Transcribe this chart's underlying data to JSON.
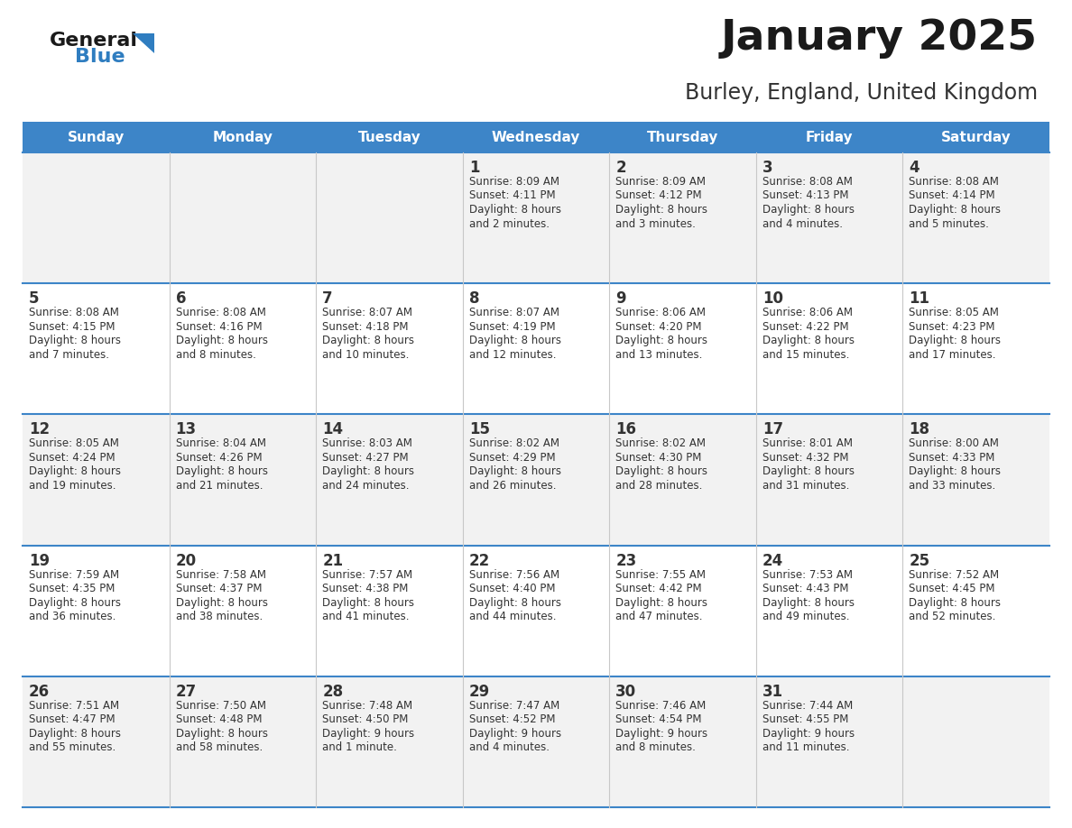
{
  "title": "January 2025",
  "subtitle": "Burley, England, United Kingdom",
  "header_bg": "#3d85c8",
  "header_text_color": "#ffffff",
  "day_names": [
    "Sunday",
    "Monday",
    "Tuesday",
    "Wednesday",
    "Thursday",
    "Friday",
    "Saturday"
  ],
  "row_bg_light": "#f2f2f2",
  "row_bg_white": "#ffffff",
  "cell_border_color": "#3d85c8",
  "text_color": "#333333",
  "logo_general_color": "#1a1a1a",
  "logo_blue_color": "#2f7dc0",
  "days": [
    {
      "day": 1,
      "col": 3,
      "row": 0,
      "sunrise": "8:09 AM",
      "sunset": "4:11 PM",
      "dl1": "Daylight: 8 hours",
      "dl2": "and 2 minutes."
    },
    {
      "day": 2,
      "col": 4,
      "row": 0,
      "sunrise": "8:09 AM",
      "sunset": "4:12 PM",
      "dl1": "Daylight: 8 hours",
      "dl2": "and 3 minutes."
    },
    {
      "day": 3,
      "col": 5,
      "row": 0,
      "sunrise": "8:08 AM",
      "sunset": "4:13 PM",
      "dl1": "Daylight: 8 hours",
      "dl2": "and 4 minutes."
    },
    {
      "day": 4,
      "col": 6,
      "row": 0,
      "sunrise": "8:08 AM",
      "sunset": "4:14 PM",
      "dl1": "Daylight: 8 hours",
      "dl2": "and 5 minutes."
    },
    {
      "day": 5,
      "col": 0,
      "row": 1,
      "sunrise": "8:08 AM",
      "sunset": "4:15 PM",
      "dl1": "Daylight: 8 hours",
      "dl2": "and 7 minutes."
    },
    {
      "day": 6,
      "col": 1,
      "row": 1,
      "sunrise": "8:08 AM",
      "sunset": "4:16 PM",
      "dl1": "Daylight: 8 hours",
      "dl2": "and 8 minutes."
    },
    {
      "day": 7,
      "col": 2,
      "row": 1,
      "sunrise": "8:07 AM",
      "sunset": "4:18 PM",
      "dl1": "Daylight: 8 hours",
      "dl2": "and 10 minutes."
    },
    {
      "day": 8,
      "col": 3,
      "row": 1,
      "sunrise": "8:07 AM",
      "sunset": "4:19 PM",
      "dl1": "Daylight: 8 hours",
      "dl2": "and 12 minutes."
    },
    {
      "day": 9,
      "col": 4,
      "row": 1,
      "sunrise": "8:06 AM",
      "sunset": "4:20 PM",
      "dl1": "Daylight: 8 hours",
      "dl2": "and 13 minutes."
    },
    {
      "day": 10,
      "col": 5,
      "row": 1,
      "sunrise": "8:06 AM",
      "sunset": "4:22 PM",
      "dl1": "Daylight: 8 hours",
      "dl2": "and 15 minutes."
    },
    {
      "day": 11,
      "col": 6,
      "row": 1,
      "sunrise": "8:05 AM",
      "sunset": "4:23 PM",
      "dl1": "Daylight: 8 hours",
      "dl2": "and 17 minutes."
    },
    {
      "day": 12,
      "col": 0,
      "row": 2,
      "sunrise": "8:05 AM",
      "sunset": "4:24 PM",
      "dl1": "Daylight: 8 hours",
      "dl2": "and 19 minutes."
    },
    {
      "day": 13,
      "col": 1,
      "row": 2,
      "sunrise": "8:04 AM",
      "sunset": "4:26 PM",
      "dl1": "Daylight: 8 hours",
      "dl2": "and 21 minutes."
    },
    {
      "day": 14,
      "col": 2,
      "row": 2,
      "sunrise": "8:03 AM",
      "sunset": "4:27 PM",
      "dl1": "Daylight: 8 hours",
      "dl2": "and 24 minutes."
    },
    {
      "day": 15,
      "col": 3,
      "row": 2,
      "sunrise": "8:02 AM",
      "sunset": "4:29 PM",
      "dl1": "Daylight: 8 hours",
      "dl2": "and 26 minutes."
    },
    {
      "day": 16,
      "col": 4,
      "row": 2,
      "sunrise": "8:02 AM",
      "sunset": "4:30 PM",
      "dl1": "Daylight: 8 hours",
      "dl2": "and 28 minutes."
    },
    {
      "day": 17,
      "col": 5,
      "row": 2,
      "sunrise": "8:01 AM",
      "sunset": "4:32 PM",
      "dl1": "Daylight: 8 hours",
      "dl2": "and 31 minutes."
    },
    {
      "day": 18,
      "col": 6,
      "row": 2,
      "sunrise": "8:00 AM",
      "sunset": "4:33 PM",
      "dl1": "Daylight: 8 hours",
      "dl2": "and 33 minutes."
    },
    {
      "day": 19,
      "col": 0,
      "row": 3,
      "sunrise": "7:59 AM",
      "sunset": "4:35 PM",
      "dl1": "Daylight: 8 hours",
      "dl2": "and 36 minutes."
    },
    {
      "day": 20,
      "col": 1,
      "row": 3,
      "sunrise": "7:58 AM",
      "sunset": "4:37 PM",
      "dl1": "Daylight: 8 hours",
      "dl2": "and 38 minutes."
    },
    {
      "day": 21,
      "col": 2,
      "row": 3,
      "sunrise": "7:57 AM",
      "sunset": "4:38 PM",
      "dl1": "Daylight: 8 hours",
      "dl2": "and 41 minutes."
    },
    {
      "day": 22,
      "col": 3,
      "row": 3,
      "sunrise": "7:56 AM",
      "sunset": "4:40 PM",
      "dl1": "Daylight: 8 hours",
      "dl2": "and 44 minutes."
    },
    {
      "day": 23,
      "col": 4,
      "row": 3,
      "sunrise": "7:55 AM",
      "sunset": "4:42 PM",
      "dl1": "Daylight: 8 hours",
      "dl2": "and 47 minutes."
    },
    {
      "day": 24,
      "col": 5,
      "row": 3,
      "sunrise": "7:53 AM",
      "sunset": "4:43 PM",
      "dl1": "Daylight: 8 hours",
      "dl2": "and 49 minutes."
    },
    {
      "day": 25,
      "col": 6,
      "row": 3,
      "sunrise": "7:52 AM",
      "sunset": "4:45 PM",
      "dl1": "Daylight: 8 hours",
      "dl2": "and 52 minutes."
    },
    {
      "day": 26,
      "col": 0,
      "row": 4,
      "sunrise": "7:51 AM",
      "sunset": "4:47 PM",
      "dl1": "Daylight: 8 hours",
      "dl2": "and 55 minutes."
    },
    {
      "day": 27,
      "col": 1,
      "row": 4,
      "sunrise": "7:50 AM",
      "sunset": "4:48 PM",
      "dl1": "Daylight: 8 hours",
      "dl2": "and 58 minutes."
    },
    {
      "day": 28,
      "col": 2,
      "row": 4,
      "sunrise": "7:48 AM",
      "sunset": "4:50 PM",
      "dl1": "Daylight: 9 hours",
      "dl2": "and 1 minute."
    },
    {
      "day": 29,
      "col": 3,
      "row": 4,
      "sunrise": "7:47 AM",
      "sunset": "4:52 PM",
      "dl1": "Daylight: 9 hours",
      "dl2": "and 4 minutes."
    },
    {
      "day": 30,
      "col": 4,
      "row": 4,
      "sunrise": "7:46 AM",
      "sunset": "4:54 PM",
      "dl1": "Daylight: 9 hours",
      "dl2": "and 8 minutes."
    },
    {
      "day": 31,
      "col": 5,
      "row": 4,
      "sunrise": "7:44 AM",
      "sunset": "4:55 PM",
      "dl1": "Daylight: 9 hours",
      "dl2": "and 11 minutes."
    }
  ]
}
